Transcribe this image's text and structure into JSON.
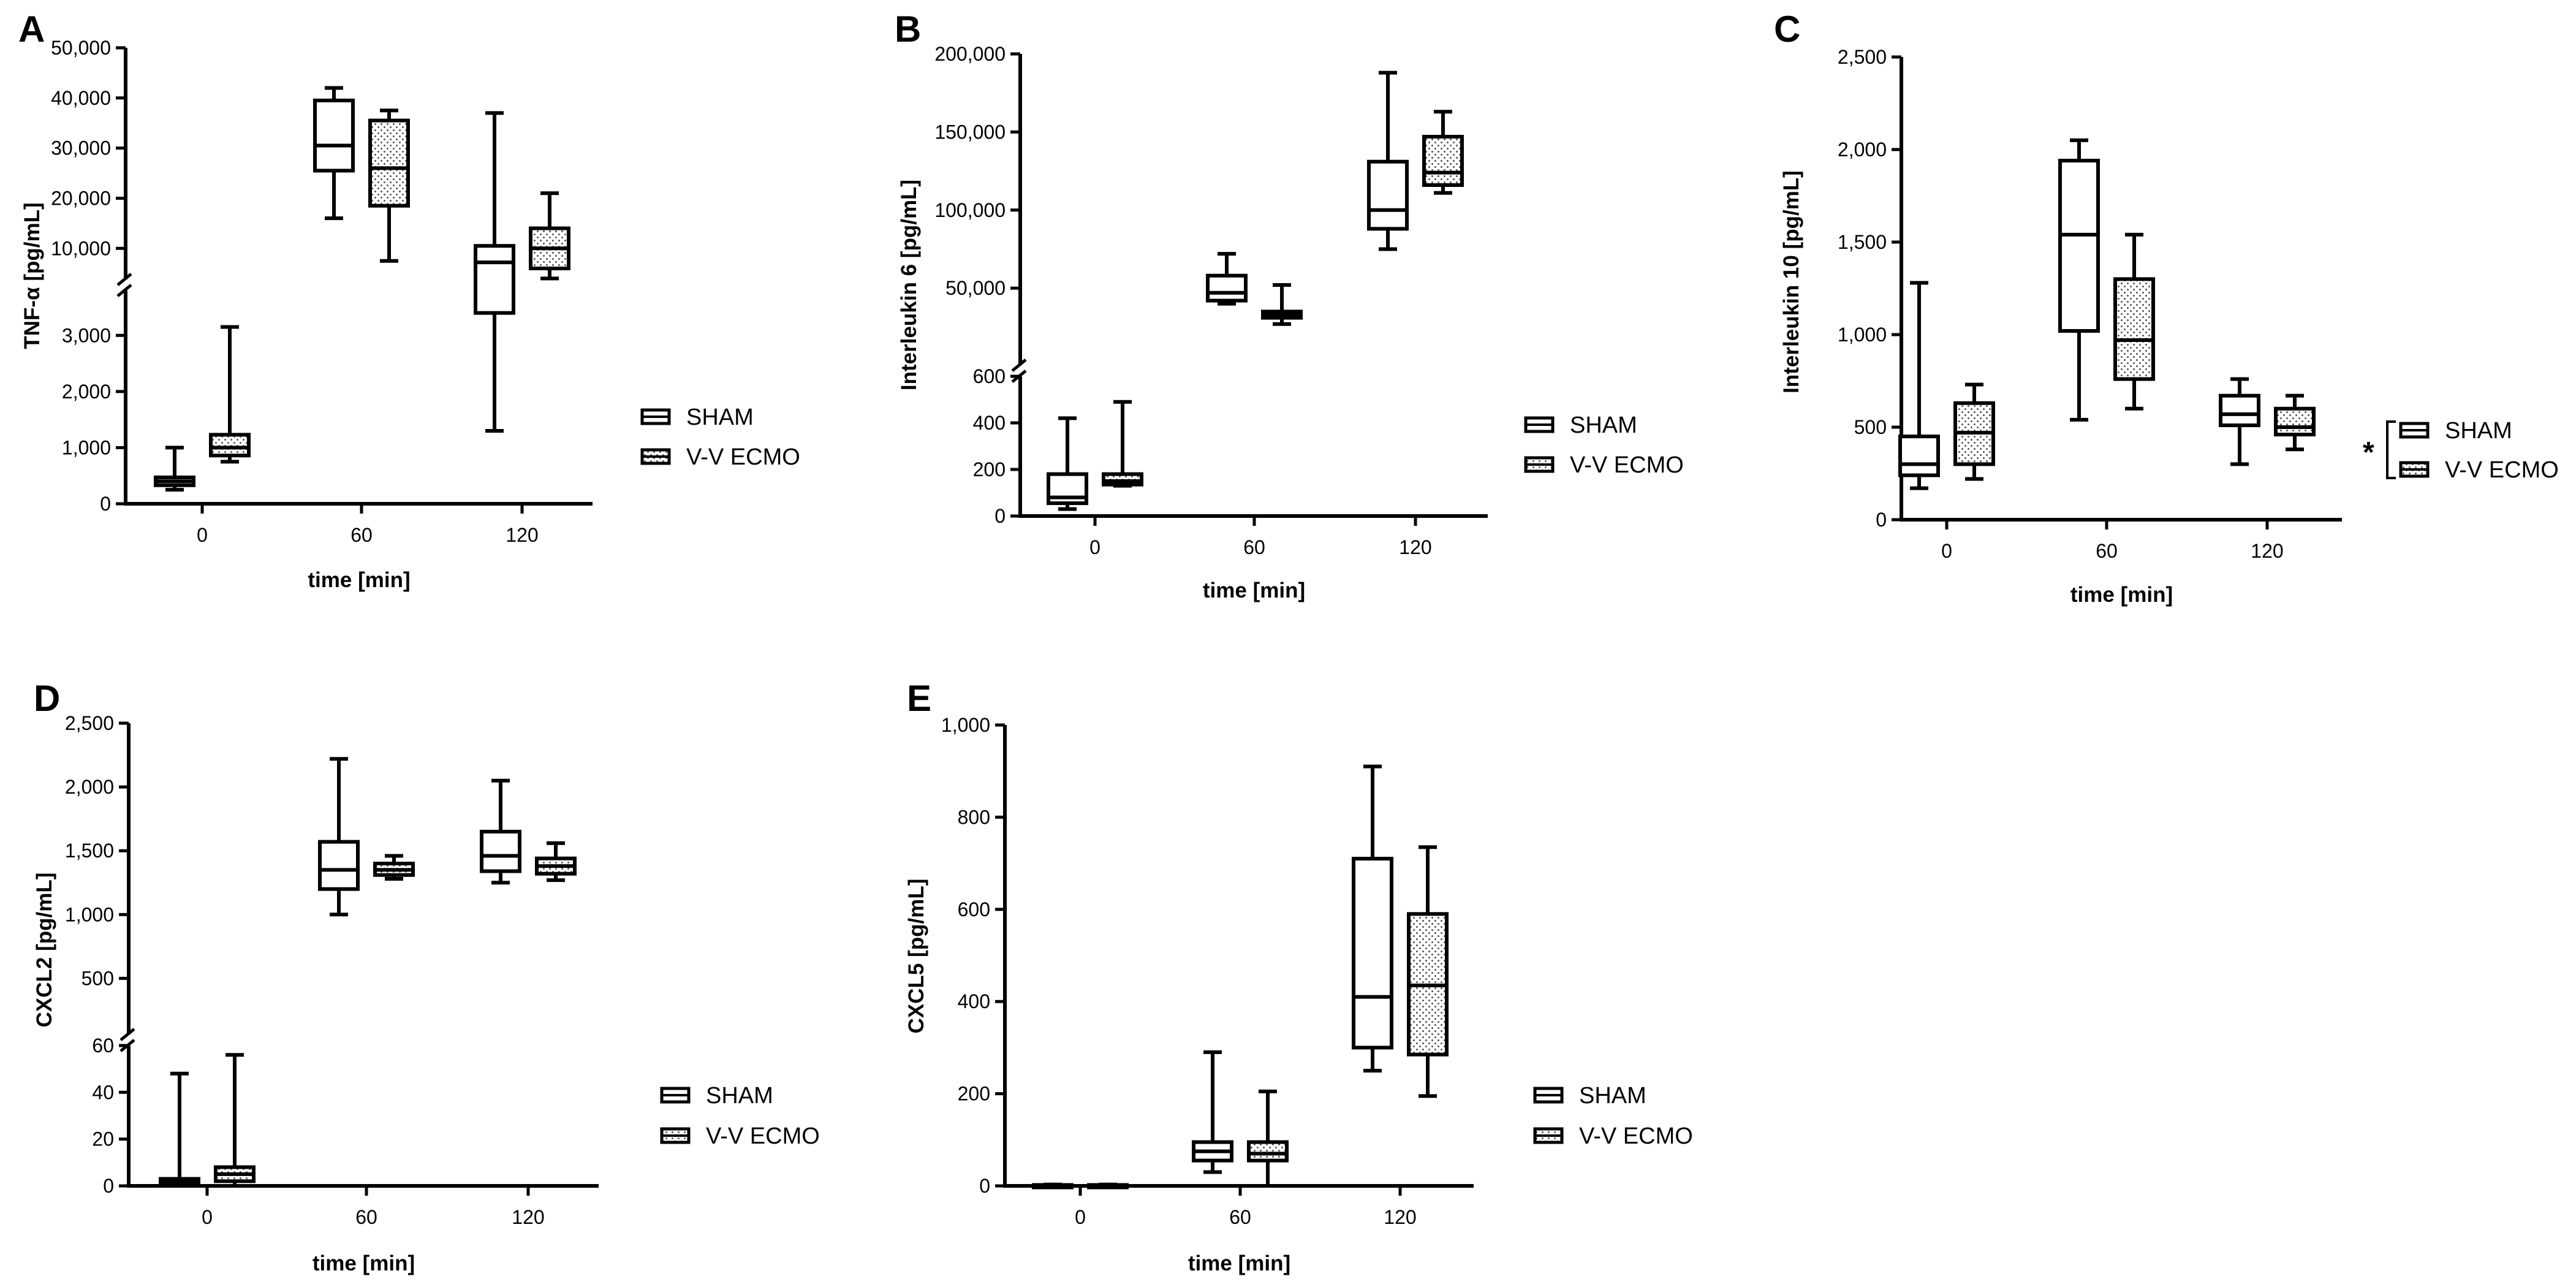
{
  "figure": {
    "legend_series": [
      "SHAM",
      "V-V ECMO"
    ]
  },
  "chart_data": [
    {
      "type": "box",
      "panel": "A",
      "title": "",
      "xlabel": "time [min]",
      "ylabel": "TNF-α [pg/mL]",
      "categories": [
        "0",
        "60",
        "120"
      ],
      "y_break": {
        "lower": {
          "range": [
            0,
            3800
          ],
          "ticks": [
            0,
            1000,
            2000,
            3000
          ],
          "tick_labels": [
            "0",
            "1,000",
            "2,000",
            "3,000"
          ]
        },
        "upper": {
          "range": [
            3800,
            50000
          ],
          "ticks": [
            10000,
            20000,
            30000,
            40000,
            50000
          ],
          "tick_labels": [
            "10,000",
            "20,000",
            "30,000",
            "40,000",
            "50,000"
          ]
        }
      },
      "series": [
        {
          "name": "SHAM",
          "pattern": "open",
          "boxes": [
            {
              "category": "0",
              "min": 250,
              "q1": 330,
              "median": 400,
              "q3": 470,
              "max": 1000
            },
            {
              "category": "60",
              "min": 16000,
              "q1": 25500,
              "median": 30500,
              "q3": 39500,
              "max": 42000
            },
            {
              "category": "120",
              "min": 1300,
              "q1": 3400,
              "median": 7200,
              "q3": 10500,
              "max": 37000
            }
          ]
        },
        {
          "name": "V-V ECMO",
          "pattern": "dotted",
          "boxes": [
            {
              "category": "0",
              "min": 750,
              "q1": 860,
              "median": 1000,
              "q3": 1230,
              "max": 3150
            },
            {
              "category": "60",
              "min": 7500,
              "q1": 18500,
              "median": 26000,
              "q3": 35500,
              "max": 37500
            },
            {
              "category": "120",
              "min": 4000,
              "q1": 6000,
              "median": 10000,
              "q3": 14000,
              "max": 21000
            }
          ]
        }
      ]
    },
    {
      "type": "box",
      "panel": "B",
      "title": "",
      "xlabel": "time [min]",
      "ylabel": "Interleukin 6 [pg/mL]",
      "categories": [
        "0",
        "60",
        "120"
      ],
      "y_break": {
        "lower": {
          "range": [
            0,
            600
          ],
          "ticks": [
            0,
            200,
            400,
            600
          ],
          "tick_labels": [
            "0",
            "200",
            "400",
            "600"
          ]
        },
        "upper": {
          "range": [
            600,
            200000
          ],
          "ticks": [
            50000,
            100000,
            150000,
            200000
          ],
          "tick_labels": [
            "50,000",
            "100,000",
            "150,000",
            "200,000"
          ]
        }
      },
      "series": [
        {
          "name": "SHAM",
          "pattern": "open",
          "boxes": [
            {
              "category": "0",
              "min": 30,
              "q1": 55,
              "median": 80,
              "q3": 180,
              "max": 420
            },
            {
              "category": "60",
              "min": 40000,
              "q1": 42000,
              "median": 47000,
              "q3": 58000,
              "max": 72000
            },
            {
              "category": "120",
              "min": 75000,
              "q1": 88000,
              "median": 100000,
              "q3": 131000,
              "max": 188000
            }
          ]
        },
        {
          "name": "V-V ECMO",
          "pattern": "dotted",
          "boxes": [
            {
              "category": "0",
              "min": 130,
              "q1": 135,
              "median": 150,
              "q3": 180,
              "max": 490
            },
            {
              "category": "60",
              "min": 27000,
              "q1": 31000,
              "median": 33000,
              "q3": 35000,
              "max": 52000
            },
            {
              "category": "120",
              "min": 111000,
              "q1": 116000,
              "median": 124000,
              "q3": 147000,
              "max": 163000
            }
          ]
        }
      ]
    },
    {
      "type": "box",
      "panel": "C",
      "title": "",
      "xlabel": "time [min]",
      "ylabel": "Interleukin 10 [pg/mL]",
      "categories": [
        "0",
        "60",
        "120"
      ],
      "y_axis": {
        "range": [
          0,
          2500
        ],
        "ticks": [
          0,
          500,
          1000,
          1500,
          2000,
          2500
        ],
        "tick_labels": [
          "0",
          "500",
          "1,000",
          "1,500",
          "2,000",
          "2,500"
        ]
      },
      "significance": "*",
      "series": [
        {
          "name": "SHAM",
          "pattern": "open",
          "boxes": [
            {
              "category": "0",
              "min": 170,
              "q1": 240,
              "median": 300,
              "q3": 450,
              "max": 1280
            },
            {
              "category": "60",
              "min": 540,
              "q1": 1020,
              "median": 1540,
              "q3": 1940,
              "max": 2050
            },
            {
              "category": "120",
              "min": 300,
              "q1": 510,
              "median": 570,
              "q3": 670,
              "max": 760
            }
          ]
        },
        {
          "name": "V-V ECMO",
          "pattern": "dotted",
          "boxes": [
            {
              "category": "0",
              "min": 220,
              "q1": 300,
              "median": 470,
              "q3": 630,
              "max": 730
            },
            {
              "category": "60",
              "min": 600,
              "q1": 760,
              "median": 970,
              "q3": 1300,
              "max": 1540
            },
            {
              "category": "120",
              "min": 380,
              "q1": 460,
              "median": 500,
              "q3": 600,
              "max": 670
            }
          ]
        }
      ]
    },
    {
      "type": "box",
      "panel": "D",
      "title": "",
      "xlabel": "time [min]",
      "ylabel": "CXCL2 [pg/mL]",
      "categories": [
        "0",
        "60",
        "120"
      ],
      "y_break": {
        "lower": {
          "range": [
            0,
            60
          ],
          "ticks": [
            0,
            20,
            40,
            60
          ],
          "tick_labels": [
            "0",
            "20",
            "40",
            "60"
          ]
        },
        "upper": {
          "range": [
            60,
            2500
          ],
          "ticks": [
            500,
            1000,
            1500,
            2000,
            2500
          ],
          "tick_labels": [
            "500",
            "1,000",
            "1,500",
            "2,000",
            "2,500"
          ]
        }
      },
      "series": [
        {
          "name": "SHAM",
          "pattern": "open",
          "boxes": [
            {
              "category": "0",
              "min": 0,
              "q1": 0.5,
              "median": 1.5,
              "q3": 3,
              "max": 48
            },
            {
              "category": "60",
              "min": 1000,
              "q1": 1200,
              "median": 1350,
              "q3": 1570,
              "max": 2220
            },
            {
              "category": "120",
              "min": 1250,
              "q1": 1340,
              "median": 1460,
              "q3": 1650,
              "max": 2050
            }
          ]
        },
        {
          "name": "V-V ECMO",
          "pattern": "dotted",
          "boxes": [
            {
              "category": "0",
              "min": 0,
              "q1": 2,
              "median": 5,
              "q3": 8,
              "max": 56
            },
            {
              "category": "60",
              "min": 1280,
              "q1": 1310,
              "median": 1350,
              "q3": 1400,
              "max": 1460
            },
            {
              "category": "120",
              "min": 1270,
              "q1": 1320,
              "median": 1380,
              "q3": 1440,
              "max": 1560
            }
          ]
        }
      ]
    },
    {
      "type": "box",
      "panel": "E",
      "title": "",
      "xlabel": "time [min]",
      "ylabel": "CXCL5 [pg/mL]",
      "categories": [
        "0",
        "60",
        "120"
      ],
      "y_axis": {
        "range": [
          0,
          1000
        ],
        "ticks": [
          0,
          200,
          400,
          600,
          800,
          1000
        ],
        "tick_labels": [
          "0",
          "200",
          "400",
          "600",
          "800",
          "1,000"
        ]
      },
      "series": [
        {
          "name": "SHAM",
          "pattern": "open",
          "boxes": [
            {
              "category": "0",
              "min": 0,
              "q1": 0,
              "median": 1,
              "q3": 2,
              "max": 3
            },
            {
              "category": "60",
              "min": 30,
              "q1": 55,
              "median": 75,
              "q3": 95,
              "max": 290
            },
            {
              "category": "120",
              "min": 250,
              "q1": 300,
              "median": 410,
              "q3": 710,
              "max": 910
            }
          ]
        },
        {
          "name": "V-V ECMO",
          "pattern": "dotted",
          "boxes": [
            {
              "category": "0",
              "min": 0,
              "q1": 0,
              "median": 1,
              "q3": 2,
              "max": 3
            },
            {
              "category": "60",
              "min": 0,
              "q1": 55,
              "median": 70,
              "q3": 95,
              "max": 205
            },
            {
              "category": "120",
              "min": 195,
              "q1": 285,
              "median": 435,
              "q3": 590,
              "max": 735
            }
          ]
        }
      ]
    }
  ]
}
